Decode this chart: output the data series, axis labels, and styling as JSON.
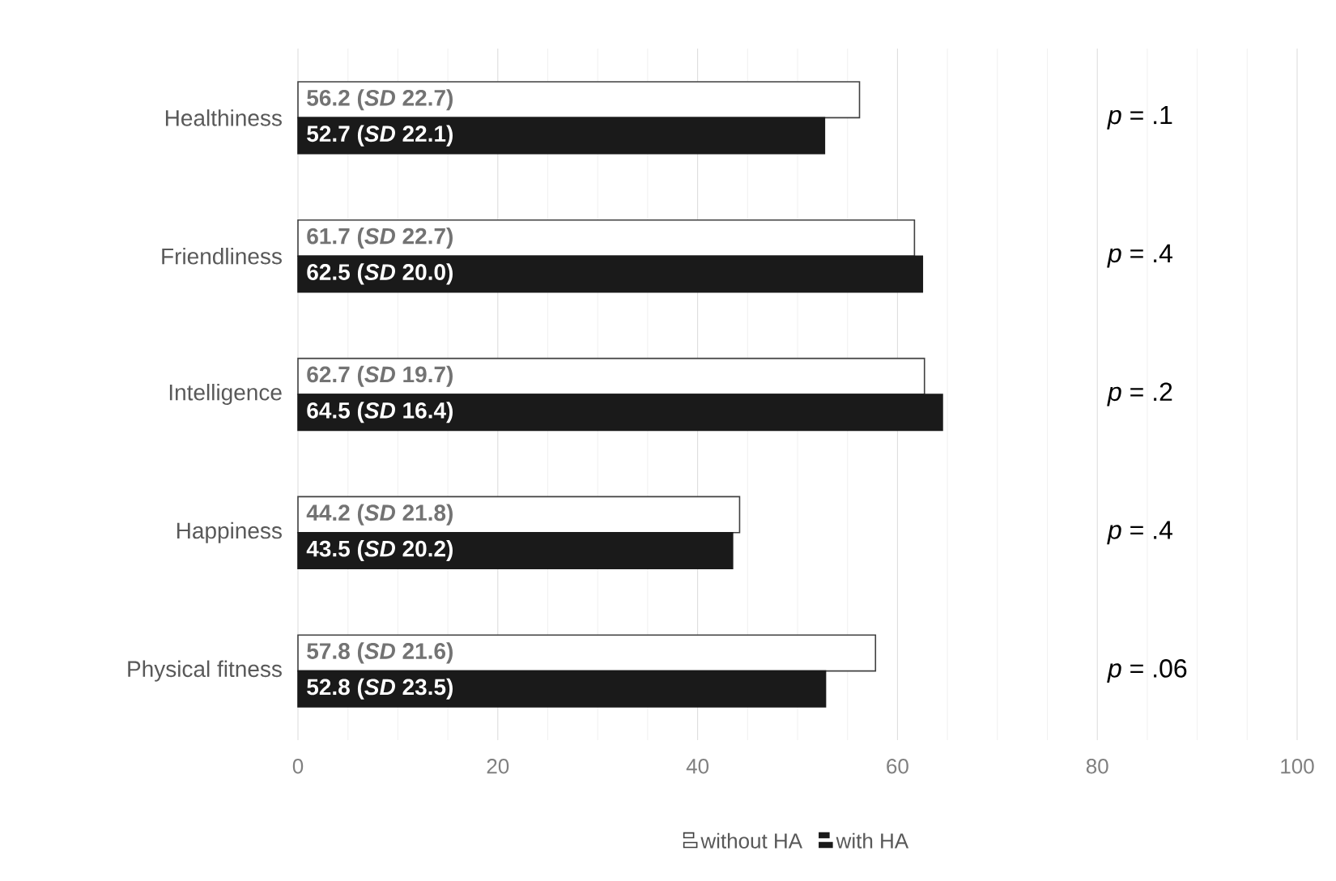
{
  "chart_data": {
    "type": "bar",
    "orientation": "horizontal",
    "categories": [
      "Healthiness",
      "Friendliness",
      "Intelligence",
      "Happiness",
      "Physical fitness"
    ],
    "series": [
      {
        "name": "without HA",
        "color": "#ffffff",
        "values": [
          56.2,
          61.7,
          62.7,
          44.2,
          57.8
        ],
        "value_labels": [
          "56.2 (*SD* 22.7)",
          "61.7 (*SD* 22.7)",
          "62.7 (*SD* 19.7)",
          "44.2 (*SD* 21.8)",
          "57.8 (*SD* 21.6)"
        ]
      },
      {
        "name": "with HA",
        "color": "#1a1a1a",
        "values": [
          52.7,
          62.5,
          64.5,
          43.5,
          52.8
        ],
        "value_labels": [
          "52.7 (*SD* 22.1)",
          "62.5 (*SD* 20.0)",
          "64.5 (*SD* 16.4)",
          "43.5 (*SD* 20.2)",
          "52.8 (*SD* 23.5)"
        ]
      }
    ],
    "xlim": [
      0,
      100
    ],
    "xticks": [
      0,
      20,
      40,
      60,
      80,
      100
    ],
    "grid": "x",
    "legend": "bottom",
    "annotations": [
      "*p* = .1",
      "*p* = .4",
      "*p* = .2",
      "*p* = .4",
      "*p* = .06"
    ]
  }
}
